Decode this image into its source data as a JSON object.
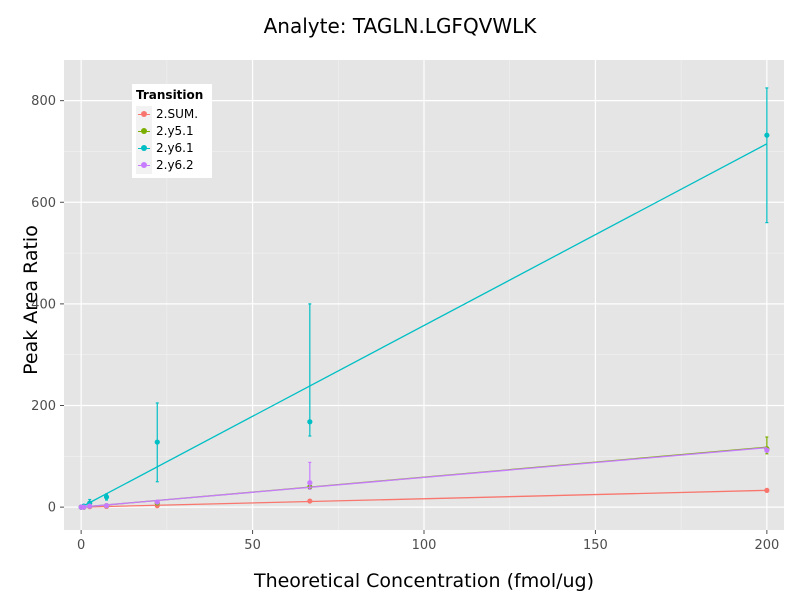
{
  "chart_data": {
    "type": "line",
    "title": "Analyte: TAGLN.LGFQVWLK",
    "xlabel": "Theoretical Concentration (fmol/ug)",
    "ylabel": "Peak Area Ratio",
    "xlim": [
      -5,
      205
    ],
    "ylim": [
      -45,
      880
    ],
    "x_ticks": [
      0,
      50,
      100,
      150,
      200
    ],
    "y_ticks": [
      0,
      200,
      400,
      600,
      800
    ],
    "grid": true,
    "legend": {
      "title": "Transition",
      "position": "top-left"
    },
    "series": [
      {
        "name": "2.SUM.",
        "color": "#F8766D",
        "points": [
          {
            "x": 0,
            "y": 0
          },
          {
            "x": 0.8,
            "y": 0
          },
          {
            "x": 2.5,
            "y": 1
          },
          {
            "x": 7.4,
            "y": 1.5
          },
          {
            "x": 22.2,
            "y": 3
          },
          {
            "x": 66.7,
            "y": 12
          },
          {
            "x": 200,
            "y": 33
          }
        ],
        "fit": [
          {
            "x": 0,
            "y": 0
          },
          {
            "x": 200,
            "y": 33
          }
        ]
      },
      {
        "name": "2.y5.1",
        "color": "#7CAE00",
        "points": [
          {
            "x": 0,
            "y": 0
          },
          {
            "x": 0.8,
            "y": 0
          },
          {
            "x": 2.5,
            "y": 2
          },
          {
            "x": 7.4,
            "y": 3
          },
          {
            "x": 22.2,
            "y": 8
          },
          {
            "x": 66.7,
            "y": 40
          },
          {
            "x": 200,
            "y": 115,
            "err": [
              105,
              138
            ]
          }
        ],
        "fit": [
          {
            "x": 0,
            "y": 0
          },
          {
            "x": 200,
            "y": 118
          }
        ]
      },
      {
        "name": "2.y6.1",
        "color": "#00BFC4",
        "points": [
          {
            "x": 0,
            "y": 0
          },
          {
            "x": 0.8,
            "y": 2
          },
          {
            "x": 2.5,
            "y": 8,
            "err": [
              2,
              15
            ]
          },
          {
            "x": 7.4,
            "y": 20,
            "err": [
              14,
              26
            ]
          },
          {
            "x": 22.2,
            "y": 128,
            "err": [
              50,
              205
            ]
          },
          {
            "x": 66.7,
            "y": 168,
            "err": [
              140,
              400
            ]
          },
          {
            "x": 200,
            "y": 732,
            "err": [
              560,
              825
            ]
          }
        ],
        "fit": [
          {
            "x": 0,
            "y": 0
          },
          {
            "x": 200,
            "y": 715
          }
        ]
      },
      {
        "name": "2.y6.2",
        "color": "#C77CFF",
        "points": [
          {
            "x": 0,
            "y": 0
          },
          {
            "x": 0.8,
            "y": 0
          },
          {
            "x": 2.5,
            "y": 2
          },
          {
            "x": 7.4,
            "y": 3
          },
          {
            "x": 22.2,
            "y": 10
          },
          {
            "x": 66.7,
            "y": 48,
            "err": [
              35,
              88
            ]
          },
          {
            "x": 200,
            "y": 112
          }
        ],
        "fit": [
          {
            "x": 0,
            "y": 0
          },
          {
            "x": 200,
            "y": 117
          }
        ]
      }
    ]
  }
}
